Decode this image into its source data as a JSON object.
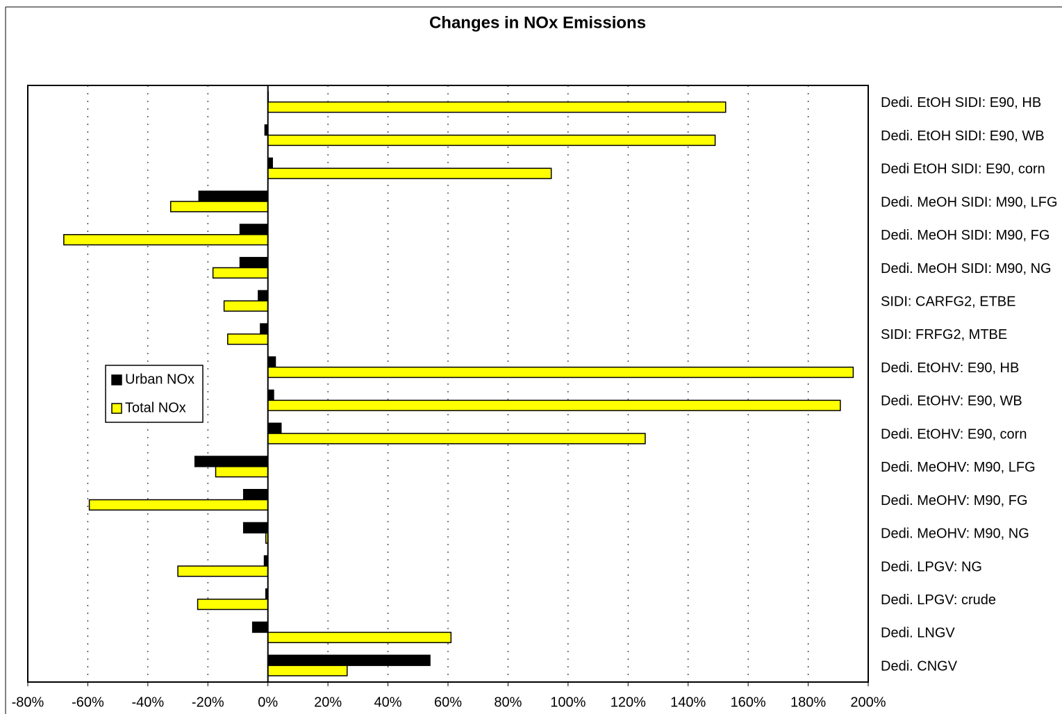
{
  "chart_data": {
    "type": "bar",
    "orientation": "horizontal",
    "title": "Changes in NOx Emissions",
    "categories": [
      "Dedi. EtOH SIDI: E90, HB",
      "Dedi. EtOH SIDI: E90, WB",
      "Dedi EtOH SIDI: E90, corn",
      "Dedi. MeOH SIDI: M90, LFG",
      "Dedi. MeOH SIDI: M90, FG",
      "Dedi. MeOH SIDI: M90, NG",
      "SIDI: CARFG2, ETBE",
      "SIDI: FRFG2, MTBE",
      "Dedi. EtOHV: E90, HB",
      "Dedi. EtOHV: E90, WB",
      "Dedi. EtOHV: E90, corn",
      "Dedi. MeOHV: M90, LFG",
      "Dedi. MeOHV: M90, FG",
      "Dedi. MeOHV: M90, NG",
      "Dedi. LPGV: NG",
      "Dedi. LPGV: crude",
      "Dedi. LNGV",
      "Dedi. CNGV"
    ],
    "series": [
      {
        "name": "Urban NOx",
        "color": "#000000",
        "values": [
          0,
          -1,
          1.5,
          -23,
          -9.3,
          -9.3,
          -3.2,
          -2.5,
          2.5,
          1.9,
          4.4,
          -24.3,
          -8.1,
          -8.1,
          -1.2,
          -0.7,
          -5.1,
          54
        ]
      },
      {
        "name": "Total NOx",
        "color": "#ffff00",
        "values": [
          152.5,
          149,
          94.4,
          -32.4,
          -68,
          -18.3,
          -14.6,
          -13.4,
          195,
          190.7,
          125.7,
          -17.4,
          -59.5,
          -0.7,
          -30,
          -23.4,
          61,
          26.4
        ]
      }
    ],
    "xlim": [
      -80,
      200
    ],
    "xticks": [
      {
        "value": -80,
        "label": "-80%"
      },
      {
        "value": -60,
        "label": "-60%"
      },
      {
        "value": -40,
        "label": "-40%"
      },
      {
        "value": -20,
        "label": "-20%"
      },
      {
        "value": 0,
        "label": "0%"
      },
      {
        "value": 20,
        "label": "20%"
      },
      {
        "value": 40,
        "label": "40%"
      },
      {
        "value": 60,
        "label": "60%"
      },
      {
        "value": 80,
        "label": "80%"
      },
      {
        "value": 100,
        "label": "100%"
      },
      {
        "value": 120,
        "label": "120%"
      },
      {
        "value": 140,
        "label": "140%"
      },
      {
        "value": 160,
        "label": "160%"
      },
      {
        "value": 180,
        "label": "180%"
      },
      {
        "value": 200,
        "label": "200%"
      }
    ],
    "grid": true,
    "legend": "left"
  }
}
